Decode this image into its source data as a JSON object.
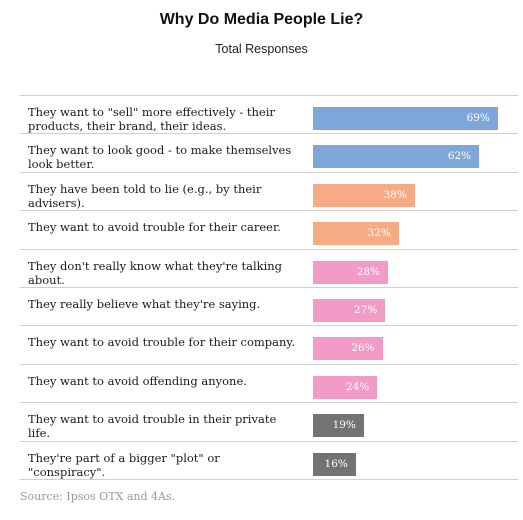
{
  "chart_data": {
    "type": "bar",
    "orientation": "horizontal",
    "title": "Why Do Media People Lie?",
    "subtitle": "Total Responses",
    "categories": [
      "They want to \"sell\" more effectively - their products, their brand, their ideas.",
      "They want to look good - to make themselves look better.",
      "They have been told to lie (e.g., by their advisers).",
      "They want to avoid trouble for their career.",
      "They don't really know what they're talking about.",
      "They really believe what they're saying.",
      "They want to avoid trouble for their company.",
      "They want to avoid offending anyone.",
      "They want to avoid trouble in their private life.",
      "They're part of a bigger \"plot\" or \"conspiracy\"."
    ],
    "values": [
      69,
      62,
      38,
      32,
      28,
      27,
      26,
      24,
      19,
      16
    ],
    "value_labels": [
      "69%",
      "62%",
      "38%",
      "32%",
      "28%",
      "27%",
      "26%",
      "24%",
      "19%",
      "16%"
    ],
    "colors": [
      "#7fa6d8",
      "#7fa6d8",
      "#f7ab84",
      "#f7ab84",
      "#f29bc7",
      "#f29bc7",
      "#f29bc7",
      "#f29bc7",
      "#737373",
      "#737373"
    ],
    "xlim": [
      0,
      100
    ],
    "grid": false,
    "legend": "none",
    "source": "Source: Ipsos OTX and 4As."
  }
}
